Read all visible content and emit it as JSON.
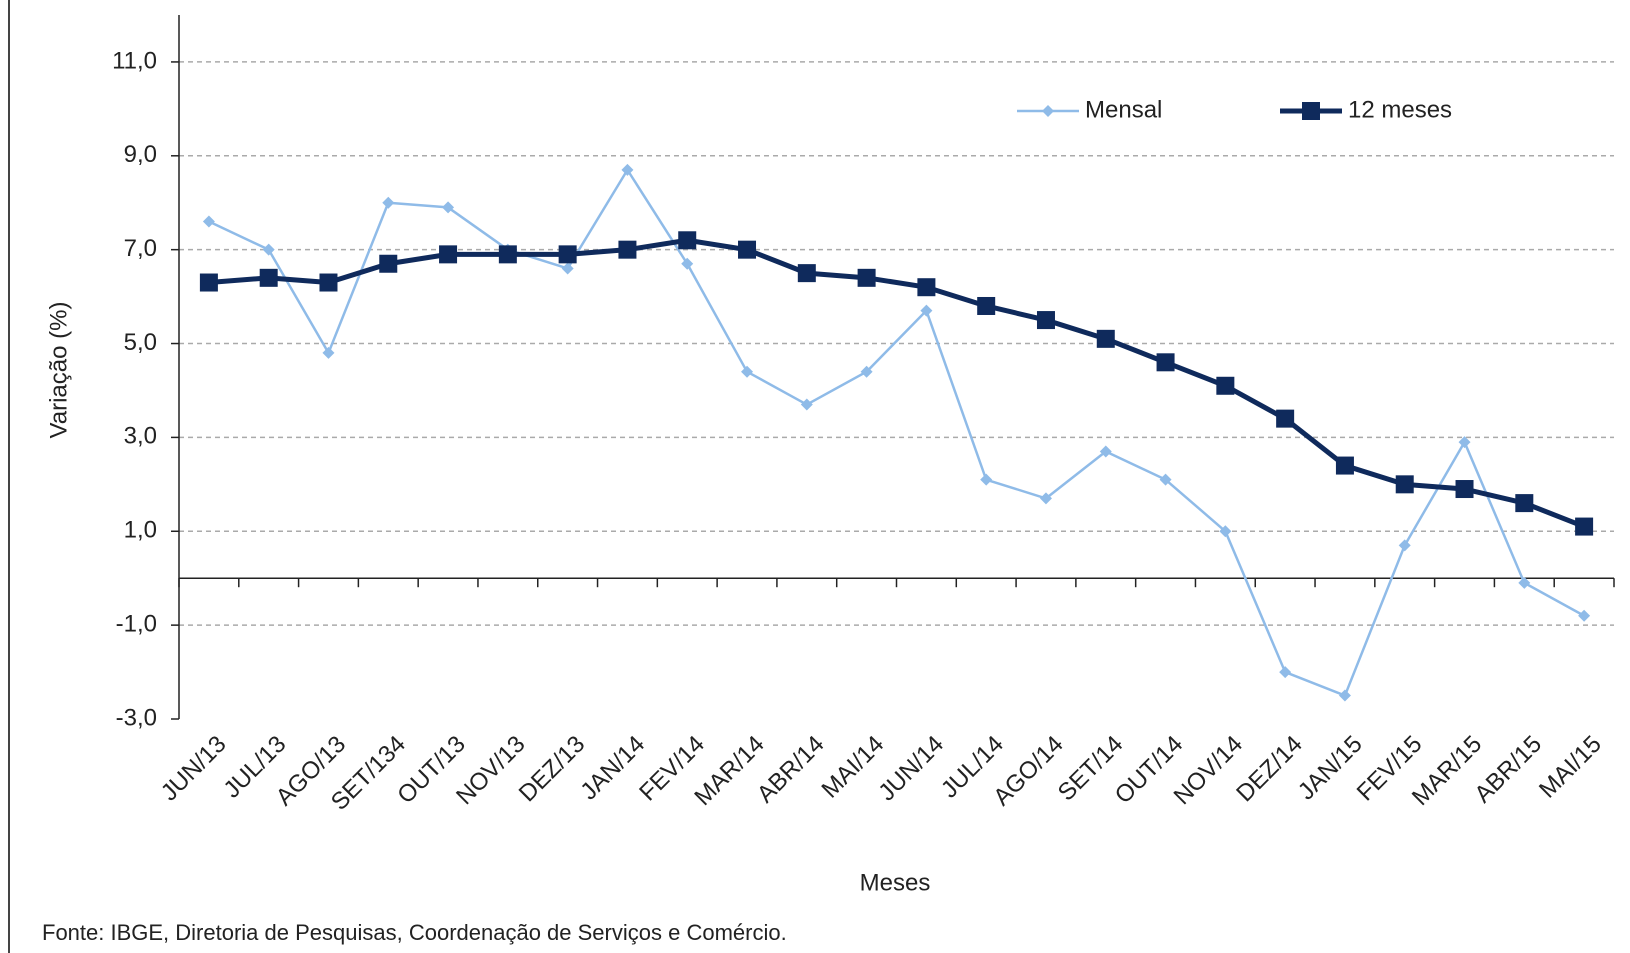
{
  "chart_data": {
    "type": "line",
    "categories": [
      "JUN/13",
      "JUL/13",
      "AGO/13",
      "SET/134",
      "OUT/13",
      "NOV/13",
      "DEZ/13",
      "JAN/14",
      "FEV/14",
      "MAR/14",
      "ABR/14",
      "MAI/14",
      "JUN/14",
      "JUL/14",
      "AGO/14",
      "SET/14",
      "OUT/14",
      "NOV/14",
      "DEZ/14",
      "JAN/15",
      "FEV/15",
      "MAR/15",
      "ABR/15",
      "MAI/15"
    ],
    "series": [
      {
        "name": "Mensal",
        "color": "#8fbbe8",
        "values": [
          7.6,
          7.0,
          4.8,
          8.0,
          7.9,
          7.0,
          6.6,
          8.7,
          6.7,
          4.4,
          3.7,
          4.4,
          5.7,
          2.1,
          1.7,
          2.7,
          2.1,
          1.0,
          -2.0,
          -2.5,
          0.7,
          2.9,
          -0.1,
          -0.8
        ]
      },
      {
        "name": "12 meses",
        "color": "#0f2a5c",
        "values": [
          6.3,
          6.4,
          6.3,
          6.7,
          6.9,
          6.9,
          6.9,
          7.0,
          7.2,
          7.0,
          6.5,
          6.4,
          6.2,
          5.8,
          5.5,
          5.1,
          4.6,
          4.1,
          3.4,
          2.4,
          2.0,
          1.9,
          1.6,
          1.1
        ]
      }
    ],
    "ylim": [
      -3,
      12
    ],
    "yticks": [
      {
        "value": -3,
        "label": "-3,0"
      },
      {
        "value": -1,
        "label": "-1,0"
      },
      {
        "value": 1,
        "label": "1,0"
      },
      {
        "value": 3,
        "label": "3,0"
      },
      {
        "value": 5,
        "label": "5,0"
      },
      {
        "value": 7,
        "label": "7,0"
      },
      {
        "value": 9,
        "label": "9,0"
      },
      {
        "value": 11,
        "label": "11,0"
      }
    ],
    "grid": true,
    "legend": "upper right",
    "xlabel": "Meses",
    "ylabel": "Variação (%)",
    "source": "Fonte: IBGE, Diretoria de Pesquisas, Coordenação de Serviços e Comércio."
  }
}
